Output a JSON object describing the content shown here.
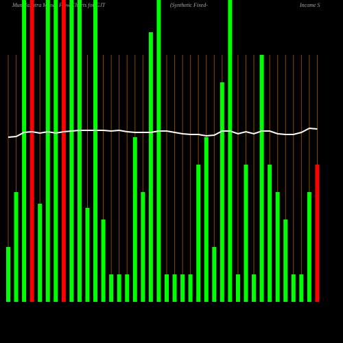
{
  "chart_data": {
    "type": "bar",
    "title": "MunafaSutra Money Flow Charts for GJT",
    "subtitle": "(Synthetic Fixed-",
    "subtitle2": "Income  S",
    "ylim": [
      0,
      440
    ],
    "values": [
      80,
      160,
      450,
      450,
      143,
      450,
      450,
      450,
      450,
      450,
      137,
      450,
      120,
      40,
      40,
      40,
      240,
      160,
      393,
      450,
      40,
      40,
      40,
      40,
      200,
      240,
      80,
      320,
      450,
      40,
      200,
      40,
      360,
      200,
      160,
      120,
      40,
      40,
      160,
      200
    ],
    "colors": [
      "#00ff00",
      "#00ff00",
      "#00ff00",
      "#ff0000",
      "#00ff00",
      "#00ff00",
      "#00ff00",
      "#ff0000",
      "#00ff00",
      "#00ff00",
      "#00ff00",
      "#00ff00",
      "#00ff00",
      "#00ff00",
      "#00ff00",
      "#00ff00",
      "#00ff00",
      "#00ff00",
      "#00ff00",
      "#00ff00",
      "#00ff00",
      "#00ff00",
      "#00ff00",
      "#00ff00",
      "#00ff00",
      "#00ff00",
      "#00ff00",
      "#00ff00",
      "#00ff00",
      "#00ff00",
      "#00ff00",
      "#00ff00",
      "#00ff00",
      "#00ff00",
      "#00ff00",
      "#00ff00",
      "#00ff00",
      "#00ff00",
      "#00ff00",
      "#ff0000"
    ],
    "line": {
      "color": "#ffffff",
      "values": [
        240,
        241,
        247,
        248,
        246,
        248,
        246,
        248,
        249,
        250,
        250,
        250,
        250,
        249,
        250,
        248,
        247,
        247,
        247,
        249,
        249,
        247,
        245,
        244,
        244,
        242,
        243,
        249,
        249,
        245,
        248,
        245,
        249,
        249,
        245,
        244,
        244,
        247,
        253,
        252
      ]
    },
    "grid_color": "#8a4a00"
  }
}
